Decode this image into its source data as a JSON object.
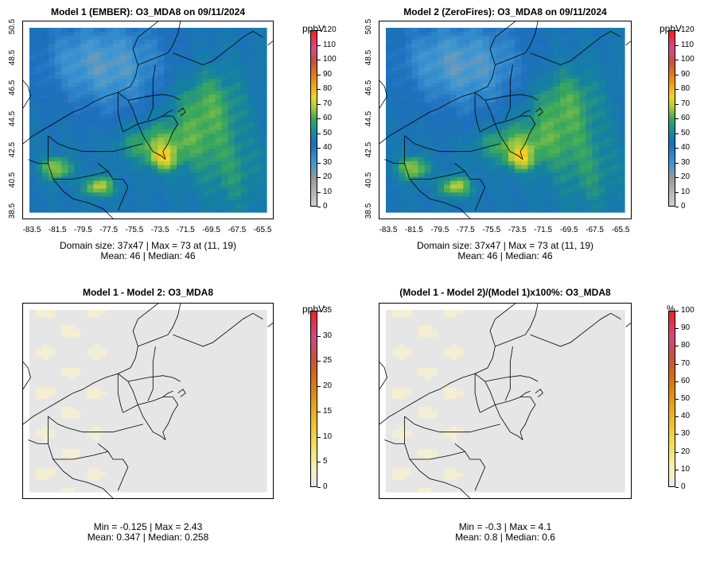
{
  "panels": [
    {
      "title": "Model 1 (EMBER): O3_MDA8 on 09/11/2024",
      "unit": "ppbV",
      "scale": [
        0,
        10,
        20,
        30,
        40,
        50,
        60,
        70,
        80,
        90,
        100,
        110,
        120
      ],
      "yticks": [
        "38.5",
        "40.5",
        "42.5",
        "44.5",
        "46.5",
        "48.5",
        "50.5"
      ],
      "xticks": [
        "-83.5",
        "-81.5",
        "-79.5",
        "-77.5",
        "-75.5",
        "-73.5",
        "-71.5",
        "-69.5",
        "-67.5",
        "-65.5"
      ],
      "stats_line1": "Domain size: 37x47 | Max = 73 at (11, 19)",
      "stats_line2": "Mean: 46 |  Median: 46",
      "mode": "conc"
    },
    {
      "title": "Model 2 (ZeroFires): O3_MDA8 on 09/11/2024",
      "unit": "ppbV",
      "scale": [
        0,
        10,
        20,
        30,
        40,
        50,
        60,
        70,
        80,
        90,
        100,
        110,
        120
      ],
      "yticks": [
        "38.5",
        "40.5",
        "42.5",
        "44.5",
        "46.5",
        "48.5",
        "50.5"
      ],
      "xticks": [
        "-83.5",
        "-81.5",
        "-79.5",
        "-77.5",
        "-75.5",
        "-73.5",
        "-71.5",
        "-69.5",
        "-67.5",
        "-65.5"
      ],
      "stats_line1": "Domain size: 37x47 | Max = 73 at (11, 19)",
      "stats_line2": "Mean: 46 |  Median: 46",
      "mode": "conc"
    },
    {
      "title": "Model 1 - Model 2: O3_MDA8",
      "unit": "ppbV",
      "scale": [
        0,
        5,
        10,
        15,
        20,
        25,
        30,
        35
      ],
      "yticks": [],
      "xticks": [],
      "stats_line1": "Min = -0.125 | Max = 2.43",
      "stats_line2": "Mean: 0.347 |  Median: 0.258",
      "mode": "diff"
    },
    {
      "title": "(Model 1 - Model 2)/(Model 1)x100%: O3_MDA8",
      "unit": "%",
      "scale": [
        0,
        10,
        20,
        30,
        40,
        50,
        60,
        70,
        80,
        90,
        100
      ],
      "yticks": [],
      "xticks": [],
      "stats_line1": "Min = -0.3 | Max = 4.1",
      "stats_line2": "Mean: 0.8 |  Median: 0.6",
      "mode": "diff"
    }
  ]
}
